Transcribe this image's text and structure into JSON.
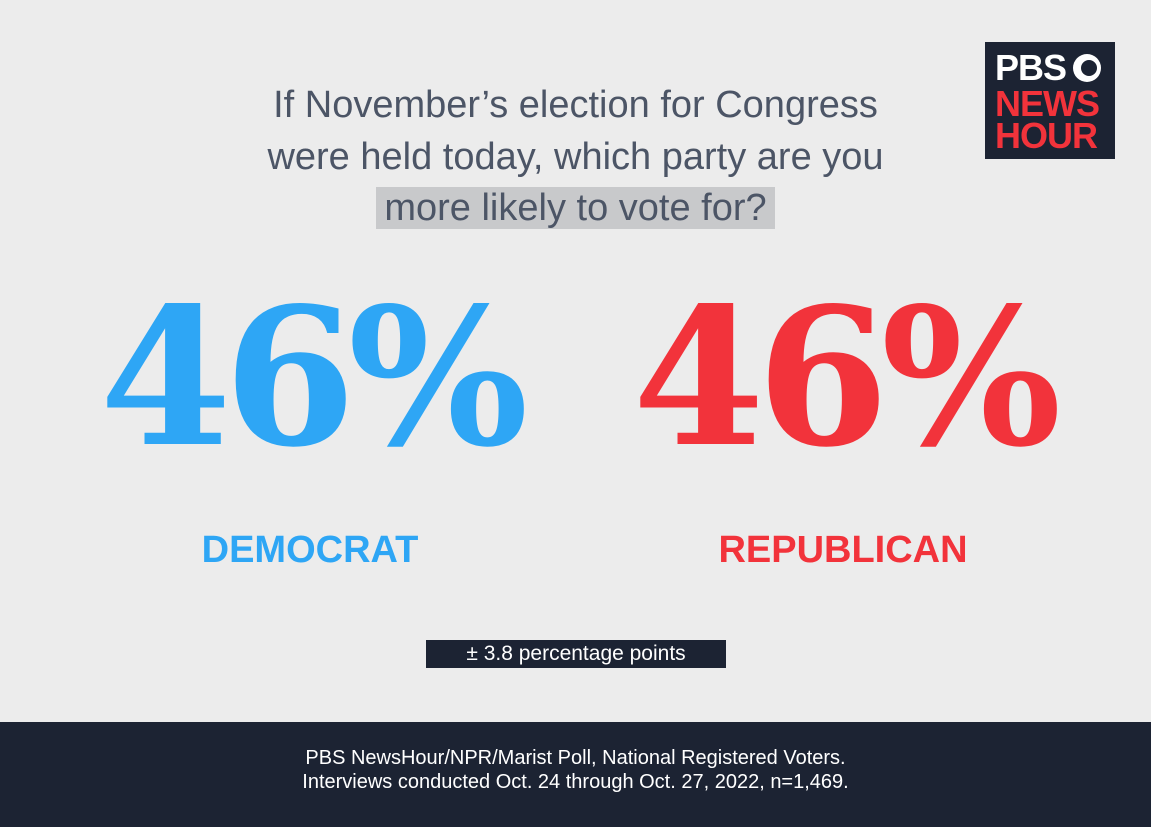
{
  "header": {
    "question_lines": [
      "If November’s election for Congress",
      "were held today, which party are you",
      "more likely to vote for?"
    ],
    "logo": [
      "PBS",
      "NEWS",
      "HOUR"
    ]
  },
  "results": [
    {
      "value": "46%",
      "label": "DEMOCRAT",
      "color": "#2ea6f5"
    },
    {
      "value": "46%",
      "label": "REPUBLICAN",
      "color": "#f2333b"
    }
  ],
  "margin_of_error": "± 3.8 percentage points",
  "footer": [
    "PBS NewsHour/NPR/Marist Poll, National Registered Voters.",
    "Interviews conducted Oct. 24 through Oct. 27, 2022, n=1,469."
  ]
}
